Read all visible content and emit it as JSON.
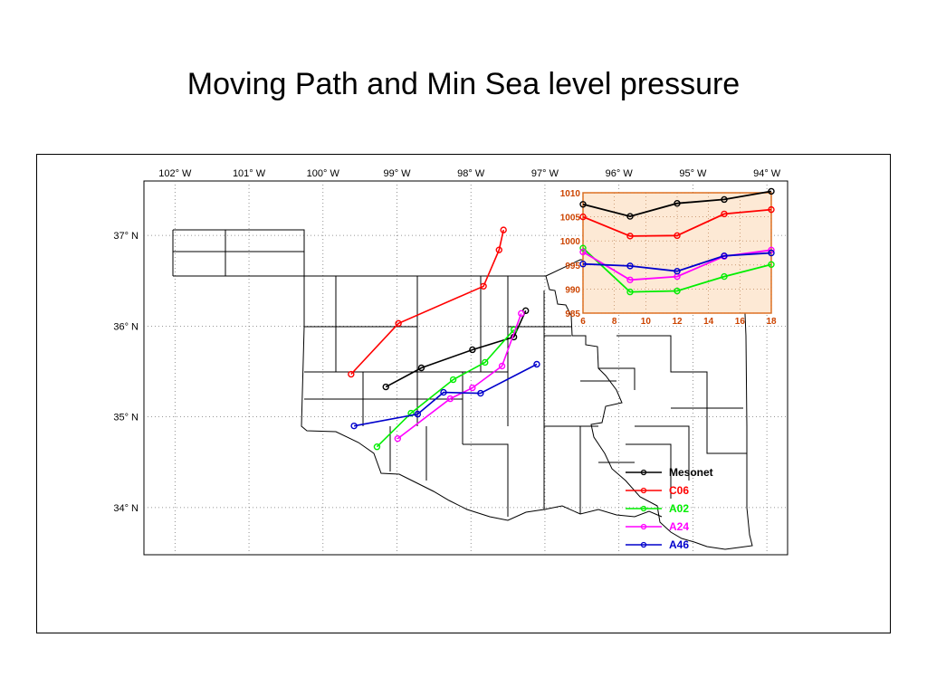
{
  "title": "Moving Path and Min Sea level pressure",
  "map": {
    "lon_ticks": [
      {
        "value": -102,
        "label": "102° W"
      },
      {
        "value": -101,
        "label": "101° W"
      },
      {
        "value": -100,
        "label": "100° W"
      },
      {
        "value": -99,
        "label": "99° W"
      },
      {
        "value": -98,
        "label": "98° W"
      },
      {
        "value": -97,
        "label": "97° W"
      },
      {
        "value": -96,
        "label": "96° W"
      },
      {
        "value": -95,
        "label": "95° W"
      },
      {
        "value": -94,
        "label": "94° W"
      }
    ],
    "lat_ticks": [
      {
        "value": 37,
        "label": "37° N"
      },
      {
        "value": 36,
        "label": "36° N"
      },
      {
        "value": 35,
        "label": "35° N"
      },
      {
        "value": 34,
        "label": "34° N"
      }
    ],
    "lon_range": [
      -102,
      -94
    ],
    "lat_range": [
      33.5,
      37.6
    ],
    "grid": "dotted",
    "region": "Oklahoma county outlines"
  },
  "chart_data": [
    {
      "type": "line",
      "role": "storm tracks on map",
      "series": [
        {
          "name": "Mesonet",
          "color": "#000000",
          "lon": [
            -99.15,
            -98.67,
            -97.98,
            -97.42,
            -97.26
          ],
          "lat": [
            35.33,
            35.54,
            35.74,
            35.88,
            36.17
          ]
        },
        {
          "name": "C06",
          "color": "#ff0000",
          "lon": [
            -99.62,
            -98.98,
            -97.83,
            -97.62,
            -97.56
          ],
          "lat": [
            35.47,
            36.03,
            36.44,
            36.84,
            37.06
          ]
        },
        {
          "name": "A02",
          "color": "#00ee00",
          "lon": [
            -99.27,
            -98.81,
            -98.24,
            -97.81,
            -97.42
          ],
          "lat": [
            34.67,
            35.04,
            35.41,
            35.6,
            35.96
          ]
        },
        {
          "name": "A24",
          "color": "#ff00ff",
          "lon": [
            -98.99,
            -98.28,
            -97.98,
            -97.58,
            -97.32
          ],
          "lat": [
            34.76,
            35.2,
            35.32,
            35.56,
            36.14
          ]
        },
        {
          "name": "A46",
          "color": "#0000cc",
          "lon": [
            -99.58,
            -98.72,
            -98.37,
            -97.87,
            -97.11
          ],
          "lat": [
            34.9,
            35.03,
            35.27,
            35.26,
            35.58
          ]
        }
      ],
      "legend": {
        "placement": "bottom-right",
        "entries": [
          "Mesonet",
          "C06",
          "A02",
          "A24",
          "A46"
        ]
      }
    },
    {
      "type": "line",
      "role": "inset: minimum sea level pressure vs time",
      "x_ticks": [
        "6",
        "8",
        "10",
        "12",
        "14",
        "16",
        "18"
      ],
      "y_ticks": [
        "985",
        "990",
        "995",
        "1000",
        "1005",
        "1010"
      ],
      "xlim": [
        6,
        18
      ],
      "ylim": [
        985,
        1010
      ],
      "series": [
        {
          "name": "Mesonet",
          "color": "#000000",
          "x": [
            6,
            9,
            12,
            15,
            18
          ],
          "y": [
            1007.6,
            1005.1,
            1007.8,
            1008.6,
            1010.3
          ]
        },
        {
          "name": "C06",
          "color": "#ff0000",
          "x": [
            6,
            9,
            12,
            15,
            18
          ],
          "y": [
            1005.0,
            1001.0,
            1001.1,
            1005.6,
            1006.5
          ]
        },
        {
          "name": "A02",
          "color": "#00ee00",
          "x": [
            6,
            9,
            12,
            15,
            18
          ],
          "y": [
            998.5,
            989.4,
            989.6,
            992.6,
            995.1
          ]
        },
        {
          "name": "A24",
          "color": "#ff00ff",
          "x": [
            6,
            9,
            12,
            15,
            18
          ],
          "y": [
            997.7,
            991.9,
            992.6,
            996.8,
            998.1
          ]
        },
        {
          "name": "A46",
          "color": "#0000cc",
          "x": [
            6,
            9,
            12,
            15,
            18
          ],
          "y": [
            995.2,
            994.8,
            993.7,
            996.9,
            997.5
          ]
        }
      ]
    }
  ],
  "colors": {
    "inset_background": "#fde9d5",
    "inset_border": "#e07020",
    "inset_tick_text": "#cc4400"
  }
}
